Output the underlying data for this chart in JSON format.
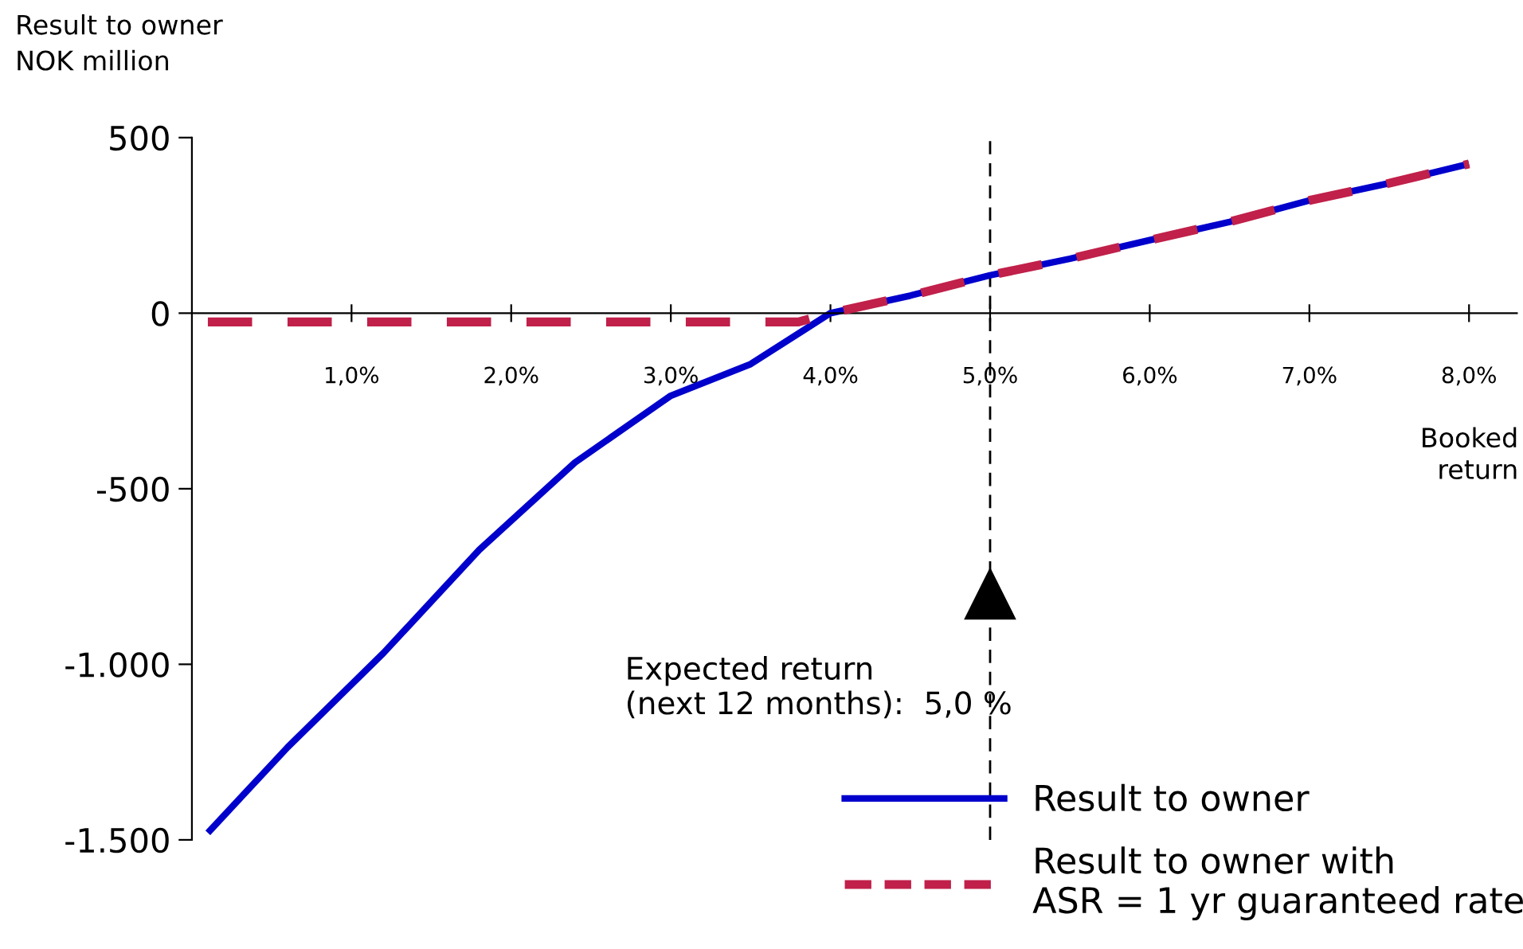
{
  "chart_data": {
    "type": "line",
    "ylabel": "Result to owner\nNOK million",
    "xlabel": "Booked\nreturn",
    "xlim": [
      0,
      8.3
    ],
    "ylim": [
      -1500,
      500
    ],
    "xticks": [
      {
        "value": 1,
        "label": "1,0%"
      },
      {
        "value": 2,
        "label": "2,0%"
      },
      {
        "value": 3,
        "label": "3,0%"
      },
      {
        "value": 4,
        "label": "4,0%"
      },
      {
        "value": 5,
        "label": "5,0%"
      },
      {
        "value": 6,
        "label": "6,0%"
      },
      {
        "value": 7,
        "label": "7,0%"
      },
      {
        "value": 8,
        "label": "8,0%"
      }
    ],
    "yticks": [
      {
        "value": 500,
        "label": "500"
      },
      {
        "value": 0,
        "label": "0"
      },
      {
        "value": -500,
        "label": "-500"
      },
      {
        "value": -1000,
        "label": "-1.000"
      },
      {
        "value": -1500,
        "label": "-1.500"
      }
    ],
    "series": [
      {
        "name": "Result to owner",
        "color": "#0000cc",
        "line_style": "solid",
        "x": [
          0.1,
          0.6,
          1.2,
          1.8,
          2.4,
          3.0,
          3.5,
          4.0,
          4.5,
          5.0,
          5.5,
          6.0,
          6.5,
          7.0,
          7.5,
          8.0
        ],
        "values": [
          -1480,
          -1236,
          -968,
          -674,
          -425,
          -235,
          -145,
          0,
          50,
          108,
          155,
          208,
          260,
          321,
          370,
          425
        ]
      },
      {
        "name": "Result to owner with\nASR = 1 yr guaranteed rate",
        "color": "#c0204a",
        "line_style": "dashed",
        "x": [
          0.1,
          1.0,
          2.0,
          3.0,
          3.8,
          4.0,
          4.5,
          5.0,
          5.5,
          6.0,
          6.5,
          7.0,
          7.5,
          8.0
        ],
        "values": [
          -25,
          -25,
          -25,
          -25,
          -25,
          0,
          50,
          108,
          155,
          208,
          260,
          321,
          370,
          425
        ]
      }
    ],
    "ref_lines": [
      {
        "axis": "x",
        "value": 5.0,
        "color": "#000000",
        "line_style": "dashed"
      }
    ],
    "annotations": [
      {
        "text": "Expected return\n(next 12 months):  5,0 %",
        "x": 5.0,
        "y": -800
      }
    ],
    "legend": "bottom right",
    "grid": false,
    "marker": "none"
  }
}
